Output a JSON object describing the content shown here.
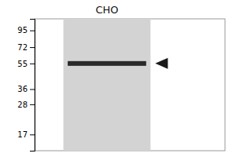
{
  "chart_data": {
    "type": "gel",
    "title": "CHO",
    "values": [
      55
    ],
    "color": "#2a2a2a",
    "marker": "triangle",
    "log": "y",
    "ylim": [
      13,
      115
    ],
    "yticks": [
      95,
      72,
      55,
      36,
      28,
      17
    ],
    "tick_labels": "y"
  }
}
